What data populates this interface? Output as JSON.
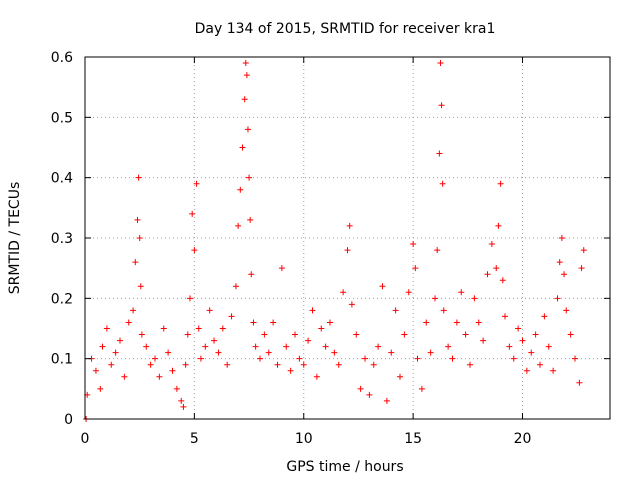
{
  "chart_data": {
    "type": "scatter",
    "title": "Day 134 of 2015, SRMTID for receiver kra1",
    "xlabel": "GPS time / hours",
    "ylabel": "SRMTID / TECUs",
    "xlim": [
      0,
      24
    ],
    "ylim": [
      0,
      0.6
    ],
    "xticks": [
      0,
      5,
      10,
      15,
      20
    ],
    "yticks": [
      0,
      0.1,
      0.2,
      0.3,
      0.4,
      0.5,
      0.6
    ],
    "xtick_labels": [
      "0",
      "5",
      "10",
      "15",
      "20"
    ],
    "ytick_labels": [
      "0",
      "0.1",
      "0.2",
      "0.3",
      "0.4",
      "0.5",
      "0.6"
    ],
    "grid": true,
    "marker": "+",
    "color": "#ff0000",
    "series": [
      {
        "name": "SRMTID",
        "x": [
          0.05,
          0.1,
          0.3,
          0.5,
          0.7,
          0.8,
          1.0,
          1.2,
          1.4,
          1.6,
          1.8,
          2.0,
          2.2,
          2.3,
          2.4,
          2.45,
          2.5,
          2.55,
          2.6,
          2.8,
          3.0,
          3.2,
          3.4,
          3.6,
          3.8,
          4.0,
          4.2,
          4.4,
          4.5,
          4.6,
          4.7,
          4.8,
          4.9,
          5.0,
          5.1,
          5.2,
          5.3,
          5.5,
          5.7,
          5.9,
          6.1,
          6.3,
          6.5,
          6.7,
          6.9,
          7.0,
          7.1,
          7.2,
          7.3,
          7.35,
          7.4,
          7.45,
          7.5,
          7.55,
          7.6,
          7.7,
          7.8,
          8.0,
          8.2,
          8.4,
          8.6,
          8.8,
          9.0,
          9.2,
          9.4,
          9.6,
          9.8,
          10.0,
          10.2,
          10.4,
          10.6,
          10.8,
          11.0,
          11.2,
          11.4,
          11.6,
          11.8,
          12.0,
          12.1,
          12.2,
          12.4,
          12.6,
          12.8,
          13.0,
          13.2,
          13.4,
          13.6,
          13.8,
          14.0,
          14.2,
          14.4,
          14.6,
          14.8,
          15.0,
          15.1,
          15.2,
          15.4,
          15.6,
          15.8,
          16.0,
          16.1,
          16.2,
          16.25,
          16.3,
          16.35,
          16.4,
          16.6,
          16.8,
          17.0,
          17.2,
          17.4,
          17.6,
          17.8,
          18.0,
          18.2,
          18.4,
          18.6,
          18.8,
          18.9,
          19.0,
          19.1,
          19.2,
          19.4,
          19.6,
          19.8,
          20.0,
          20.2,
          20.4,
          20.6,
          20.8,
          21.0,
          21.2,
          21.4,
          21.6,
          21.7,
          21.8,
          21.9,
          22.0,
          22.2,
          22.4,
          22.6,
          22.7,
          22.8
        ],
        "y": [
          0.0,
          0.04,
          0.1,
          0.08,
          0.05,
          0.12,
          0.15,
          0.09,
          0.11,
          0.13,
          0.07,
          0.16,
          0.18,
          0.26,
          0.33,
          0.4,
          0.3,
          0.22,
          0.14,
          0.12,
          0.09,
          0.1,
          0.07,
          0.15,
          0.11,
          0.08,
          0.05,
          0.03,
          0.02,
          0.09,
          0.14,
          0.2,
          0.34,
          0.28,
          0.39,
          0.15,
          0.1,
          0.12,
          0.18,
          0.13,
          0.11,
          0.15,
          0.09,
          0.17,
          0.22,
          0.32,
          0.38,
          0.45,
          0.53,
          0.59,
          0.57,
          0.48,
          0.4,
          0.33,
          0.24,
          0.16,
          0.12,
          0.1,
          0.14,
          0.11,
          0.16,
          0.09,
          0.25,
          0.12,
          0.08,
          0.14,
          0.1,
          0.09,
          0.13,
          0.18,
          0.07,
          0.15,
          0.12,
          0.16,
          0.11,
          0.09,
          0.21,
          0.28,
          0.32,
          0.19,
          0.14,
          0.05,
          0.1,
          0.04,
          0.09,
          0.12,
          0.22,
          0.03,
          0.11,
          0.18,
          0.07,
          0.14,
          0.21,
          0.29,
          0.25,
          0.1,
          0.05,
          0.16,
          0.11,
          0.2,
          0.28,
          0.44,
          0.59,
          0.52,
          0.39,
          0.18,
          0.12,
          0.1,
          0.16,
          0.21,
          0.14,
          0.09,
          0.2,
          0.16,
          0.13,
          0.24,
          0.29,
          0.25,
          0.32,
          0.39,
          0.23,
          0.17,
          0.12,
          0.1,
          0.15,
          0.13,
          0.08,
          0.11,
          0.14,
          0.09,
          0.17,
          0.12,
          0.08,
          0.2,
          0.26,
          0.3,
          0.24,
          0.18,
          0.14,
          0.1,
          0.06,
          0.25,
          0.28
        ]
      }
    ]
  }
}
